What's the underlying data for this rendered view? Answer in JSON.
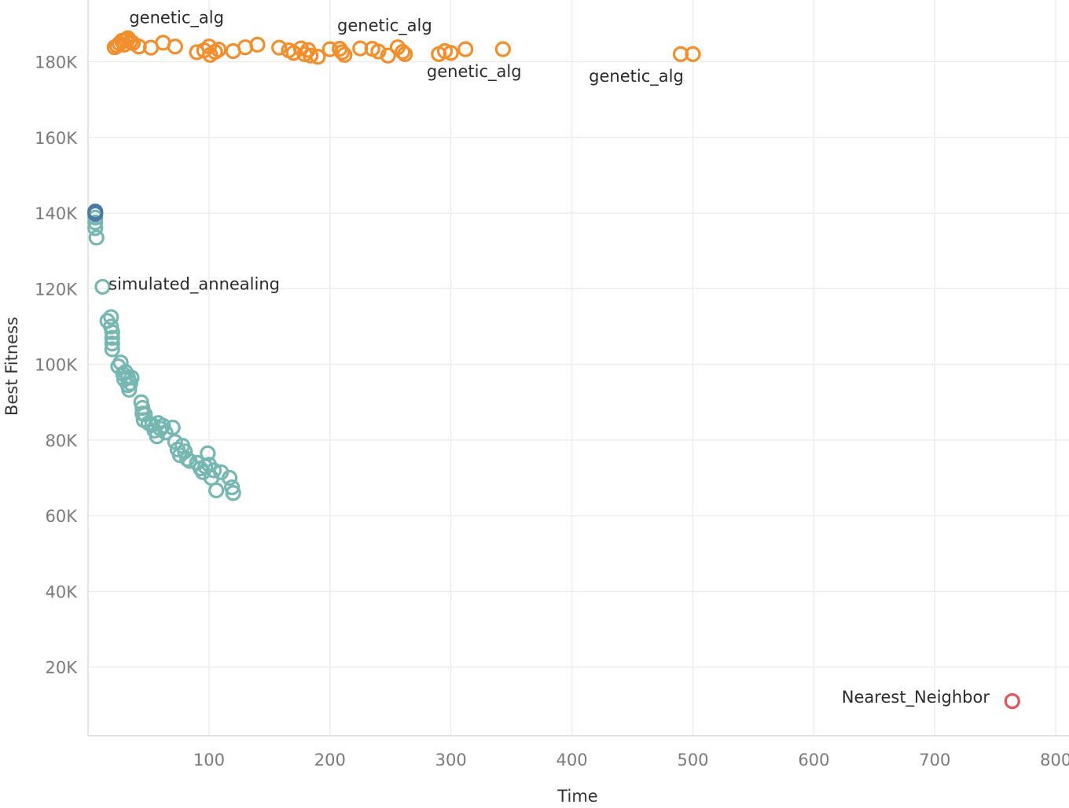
{
  "chart_data": {
    "type": "scatter",
    "xlabel": "Time",
    "ylabel": "Best Fitness",
    "xlim": [
      0,
      805
    ],
    "ylim": [
      0,
      195000
    ],
    "grid": true,
    "x_ticks": [
      {
        "value": 100,
        "label": "100"
      },
      {
        "value": 200,
        "label": "200"
      },
      {
        "value": 300,
        "label": "300"
      },
      {
        "value": 400,
        "label": "400"
      },
      {
        "value": 500,
        "label": "500"
      },
      {
        "value": 600,
        "label": "600"
      },
      {
        "value": 700,
        "label": "700"
      },
      {
        "value": 800,
        "label": "800"
      }
    ],
    "y_ticks": [
      {
        "value": 20000,
        "label": "20K"
      },
      {
        "value": 40000,
        "label": "40K"
      },
      {
        "value": 60000,
        "label": "60K"
      },
      {
        "value": 80000,
        "label": "80K"
      },
      {
        "value": 100000,
        "label": "100K"
      },
      {
        "value": 120000,
        "label": "120K"
      },
      {
        "value": 140000,
        "label": "140K"
      },
      {
        "value": 160000,
        "label": "160K"
      },
      {
        "value": 180000,
        "label": "180K"
      }
    ],
    "series": [
      {
        "color": "#f28e2b",
        "points": [
          [
            22,
            183800
          ],
          [
            24,
            184200
          ],
          [
            26,
            184800
          ],
          [
            28,
            185500
          ],
          [
            30,
            184500
          ],
          [
            31,
            185800
          ],
          [
            33,
            186200
          ],
          [
            35,
            185300
          ],
          [
            37,
            184900
          ],
          [
            42,
            184000
          ],
          [
            52,
            183700
          ],
          [
            62,
            185000
          ],
          [
            72,
            184000
          ],
          [
            90,
            182500
          ],
          [
            96,
            183000
          ],
          [
            100,
            184000
          ],
          [
            101,
            181800
          ],
          [
            105,
            182600
          ],
          [
            108,
            183200
          ],
          [
            120,
            182800
          ],
          [
            130,
            183800
          ],
          [
            140,
            184500
          ],
          [
            158,
            183700
          ],
          [
            166,
            183000
          ],
          [
            170,
            182300
          ],
          [
            176,
            183500
          ],
          [
            179,
            182000
          ],
          [
            182,
            183100
          ],
          [
            184,
            181600
          ],
          [
            190,
            181300
          ],
          [
            200,
            183300
          ],
          [
            208,
            183400
          ],
          [
            210,
            182500
          ],
          [
            212,
            181800
          ],
          [
            225,
            183500
          ],
          [
            235,
            183400
          ],
          [
            240,
            182700
          ],
          [
            248,
            181600
          ],
          [
            256,
            183800
          ],
          [
            260,
            182600
          ],
          [
            262,
            182000
          ],
          [
            290,
            182000
          ],
          [
            295,
            182800
          ],
          [
            300,
            182300
          ],
          [
            312,
            183300
          ],
          [
            343,
            183300
          ],
          [
            490,
            182000
          ],
          [
            500,
            182000
          ]
        ]
      },
      {
        "color": "#76b7b2",
        "points": [
          [
            6,
            140000
          ],
          [
            6,
            138800
          ],
          [
            6,
            137500
          ],
          [
            6,
            136000
          ],
          [
            7,
            133500
          ],
          [
            12,
            120500
          ],
          [
            16,
            111500
          ],
          [
            19,
            112500
          ],
          [
            19,
            110000
          ],
          [
            20,
            108500
          ],
          [
            20,
            107000
          ],
          [
            20,
            105500
          ],
          [
            20,
            104000
          ],
          [
            25,
            99500
          ],
          [
            27,
            100500
          ],
          [
            29,
            97500
          ],
          [
            30,
            96000
          ],
          [
            31,
            98000
          ],
          [
            33,
            96500
          ],
          [
            33,
            94500
          ],
          [
            34,
            93300
          ],
          [
            35,
            95000
          ],
          [
            36,
            96500
          ],
          [
            44,
            90000
          ],
          [
            45,
            88500
          ],
          [
            45,
            87000
          ],
          [
            46,
            85300
          ],
          [
            47,
            86800
          ],
          [
            50,
            84500
          ],
          [
            53,
            84000
          ],
          [
            55,
            82500
          ],
          [
            57,
            81000
          ],
          [
            58,
            84500
          ],
          [
            60,
            83000
          ],
          [
            62,
            83800
          ],
          [
            64,
            82000
          ],
          [
            70,
            83300
          ],
          [
            72,
            79500
          ],
          [
            74,
            77500
          ],
          [
            76,
            76000
          ],
          [
            78,
            78500
          ],
          [
            80,
            77000
          ],
          [
            82,
            75000
          ],
          [
            84,
            74500
          ],
          [
            90,
            74000
          ],
          [
            93,
            72500
          ],
          [
            95,
            71500
          ],
          [
            97,
            73000
          ],
          [
            99,
            76500
          ],
          [
            100,
            73500
          ],
          [
            102,
            70000
          ],
          [
            104,
            72000
          ],
          [
            106,
            66700
          ],
          [
            110,
            71500
          ],
          [
            117,
            70000
          ],
          [
            119,
            67500
          ],
          [
            120,
            66000
          ]
        ]
      },
      {
        "color": "#4e79a7",
        "points": [
          [
            6,
            139800
          ],
          [
            6,
            140400
          ]
        ]
      },
      {
        "color": "#e15759",
        "points": [
          [
            764,
            11000
          ]
        ]
      }
    ],
    "annotations": [
      {
        "text": "genetic_alg",
        "x": 34,
        "y": 190200
      },
      {
        "text": "genetic_alg",
        "x": 206,
        "y": 188100
      },
      {
        "text": "genetic_alg",
        "x": 280,
        "y": 175900
      },
      {
        "text": "genetic_alg",
        "x": 414,
        "y": 174700
      },
      {
        "text": "simulated_annealing",
        "x": 17,
        "y": 119800
      },
      {
        "text": "Nearest_Neighbor",
        "x": 623,
        "y": 10600
      }
    ]
  }
}
